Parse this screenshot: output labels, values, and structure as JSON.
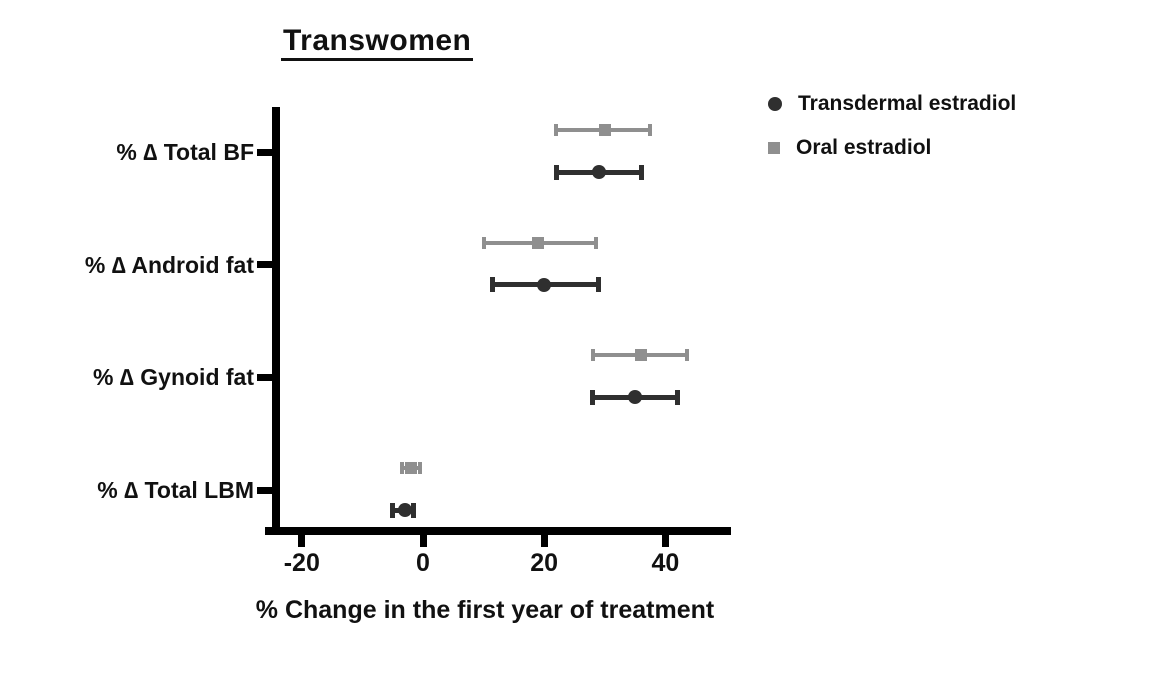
{
  "chart_data": {
    "type": "scatter",
    "title": "Transwomen",
    "xlabel": "% Change in the first year of treatment",
    "categories": [
      "% ∆ Total BF",
      "% ∆ Android fat",
      "% ∆ Gynoid fat",
      "% ∆ Total LBM"
    ],
    "x_ticks": [
      -20,
      0,
      20,
      40
    ],
    "xlim": [
      -26,
      51
    ],
    "grid": false,
    "legend_position": "top-right",
    "error_bars": true,
    "series": [
      {
        "name": "Transdermal estradiol",
        "marker": "circle",
        "color": "#2f2f2f",
        "values": [
          29,
          20,
          35,
          -3
        ],
        "ci_low": [
          22,
          11.5,
          28,
          -5
        ],
        "ci_high": [
          36,
          29,
          42,
          -1.5
        ]
      },
      {
        "name": "Oral estradiol",
        "marker": "square",
        "color": "#8f8f8f",
        "values": [
          30,
          19,
          36,
          -2
        ],
        "ci_low": [
          22,
          10,
          28,
          -3.5
        ],
        "ci_high": [
          37.5,
          28.5,
          43.5,
          -0.5
        ]
      }
    ]
  },
  "colors": {
    "axis": "#000000",
    "text": "#111111",
    "background": "#ffffff"
  }
}
